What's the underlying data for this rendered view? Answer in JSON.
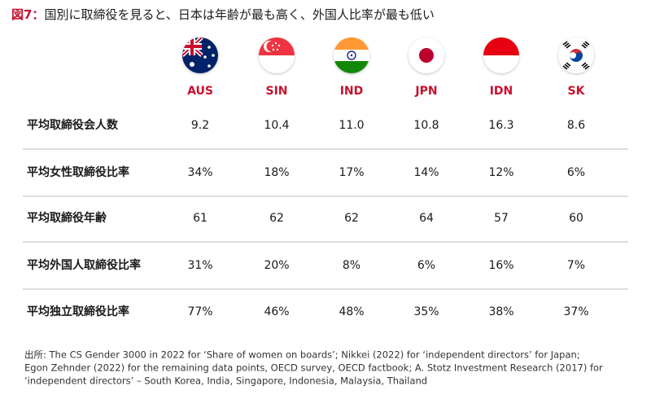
{
  "title": {
    "label": "図7：",
    "text": "国別に取締役を見ると、日本は年齢が最も高く、外国人比率が最も低い"
  },
  "table": {
    "columns": [
      "AUS",
      "SIN",
      "IND",
      "JPN",
      "IDN",
      "SK"
    ],
    "rows": [
      [
        "平均取締役会人数",
        "9.2",
        "10.4",
        "11.0",
        "10.8",
        "16.3",
        "8.6"
      ],
      [
        "平均女性取締役比率",
        "34%",
        "18%",
        "17%",
        "14%",
        "12%",
        "6%"
      ],
      [
        "平均取締役年齢",
        "61",
        "62",
        "62",
        "64",
        "57",
        "60"
      ],
      [
        "平均外国人取締役比率",
        "31%",
        "20%",
        "8%",
        "6%",
        "16%",
        "7%"
      ],
      [
        "平均独立取締役比率",
        "77%",
        "46%",
        "48%",
        "35%",
        "38%",
        "37%"
      ]
    ]
  },
  "source": [
    "出所: The CS Gender 3000 in 2022 for ‘Share of women on boards’; Nikkei (2022) for ‘independent directors’ for Japan;",
    "Egon Zehnder (2022) for the remaining data points, OECD survey, OECD factbook; A. Stotz Investment Research (2017) for",
    "‘independent directors’ – South Korea, India, Singapore, Indonesia, Malaysia, Thailand"
  ]
}
